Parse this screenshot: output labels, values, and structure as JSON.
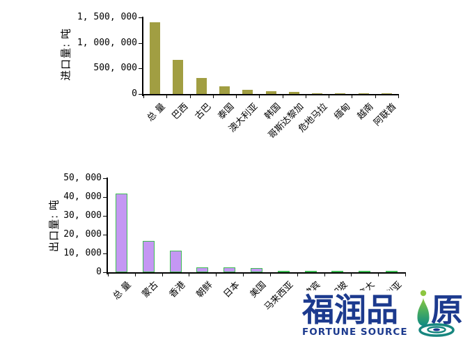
{
  "page": {
    "background": "#FFFFFF"
  },
  "chart_data": [
    {
      "type": "bar",
      "title": "",
      "xlabel": "",
      "ylabel": "进口量: 吨",
      "categories": [
        "总 量",
        "巴西",
        "古巴",
        "泰国",
        "澳大利亚",
        "韩国",
        "哥斯达黎加",
        "危地马拉",
        "缅甸",
        "越南",
        "阿联酋"
      ],
      "values": [
        1410000,
        670000,
        320000,
        150000,
        80000,
        60000,
        35000,
        15000,
        12000,
        12000,
        10000
      ],
      "ylim": [
        0,
        1500000
      ],
      "ytick_step": 500000,
      "ytick_labels": [
        "0",
        "500, 000",
        "1, 000, 000",
        "1, 500, 000"
      ],
      "bar_fill": "#A19E42",
      "bar_border": "",
      "grid": false,
      "legend": "none"
    },
    {
      "type": "bar",
      "title": "",
      "xlabel": "",
      "ylabel": "出口量: 吨",
      "categories": [
        "总 量",
        "蒙古",
        "香港",
        "朝鲜",
        "日本",
        "美国",
        "马来西亚",
        "菲律宾",
        "新加坡",
        "加拿大",
        "澳大利亚"
      ],
      "values": [
        42000,
        16500,
        11300,
        2500,
        2500,
        2400,
        700,
        500,
        400,
        400,
        300
      ],
      "ylim": [
        0,
        50000
      ],
      "ytick_step": 10000,
      "ytick_labels": [
        "0",
        "10, 000",
        "20, 000",
        "30, 000",
        "40, 000",
        "50, 000"
      ],
      "bar_fill": "#C497F3",
      "bar_border": "#3FBC54",
      "grid": false,
      "legend": "none"
    }
  ],
  "logo": {
    "cn_left": "福润品",
    "cn_right": "原",
    "en": "FORTUNE SOURCE",
    "colors": {
      "navy": "#1C3A8E",
      "drop_green": "#8DC63F",
      "teal": "#17867F"
    }
  }
}
